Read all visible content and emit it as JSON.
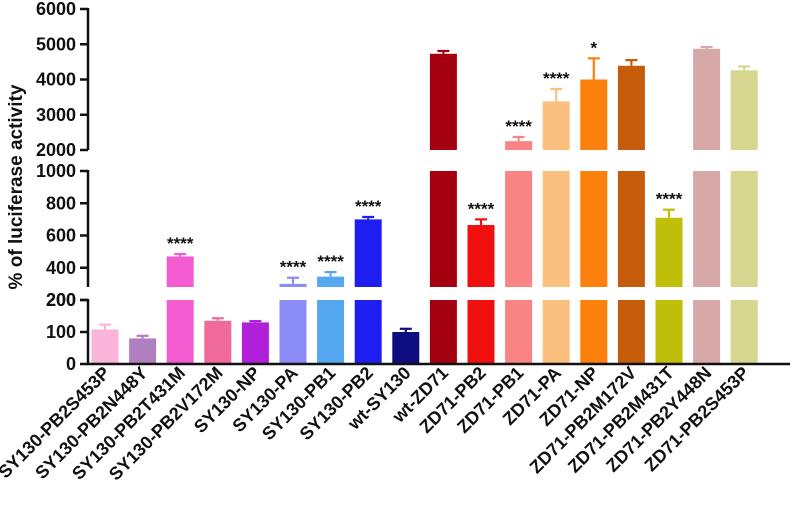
{
  "chart_data": {
    "type": "bar",
    "ylabel": "% of luciferase activity",
    "xlabel": "",
    "title": "",
    "y_axis": "broken",
    "y_segments": [
      {
        "range": [
          0,
          200
        ],
        "ticks": [
          0,
          100,
          200
        ]
      },
      {
        "range": [
          200,
          1000
        ],
        "ticks": [
          200,
          400,
          600,
          800,
          1000
        ]
      },
      {
        "range": [
          2000,
          6000
        ],
        "ticks": [
          2000,
          3000,
          4000,
          5000,
          6000
        ]
      }
    ],
    "categories": [
      "SY130-PB2S453P",
      "SY130-PB2N448Y",
      "SY130-PB2T431M",
      "SY130-PB2V172M",
      "SY130-NP",
      "SY130-PA",
      "SY130-PB1",
      "SY130-PB2",
      "wt-SY130",
      "wt-ZD71",
      "ZD71-PB2",
      "ZD71-PB1",
      "ZD71-PA",
      "ZD71-NP",
      "ZD71-PB2M172V",
      "ZD71-PB2M431T",
      "ZD71-PB2Y448N",
      "ZD71-PB2S453P"
    ],
    "values": [
      108,
      80,
      470,
      135,
      130,
      300,
      345,
      700,
      100,
      4730,
      665,
      2250,
      3380,
      4000,
      4390,
      710,
      4870,
      4260
    ],
    "errors": [
      15,
      8,
      15,
      8,
      4,
      38,
      28,
      15,
      10,
      80,
      35,
      120,
      350,
      600,
      160,
      50,
      50,
      110
    ],
    "significance": [
      "",
      "",
      "****",
      "",
      "",
      "****",
      "****",
      "****",
      "",
      "",
      "****",
      "****",
      "****",
      "*",
      "",
      "****",
      "",
      ""
    ],
    "colors": [
      "#F8B4D9",
      "#B07FC0",
      "#F25CD0",
      "#F06A9C",
      "#B020D8",
      "#8C8CF8",
      "#55A8F0",
      "#1E1EF0",
      "#0E0E80",
      "#A50010",
      "#F01010",
      "#FA8484",
      "#FCC07E",
      "#FC800C",
      "#C45C0C",
      "#BFBF0A",
      "#D6A8A8",
      "#D6D690"
    ]
  }
}
